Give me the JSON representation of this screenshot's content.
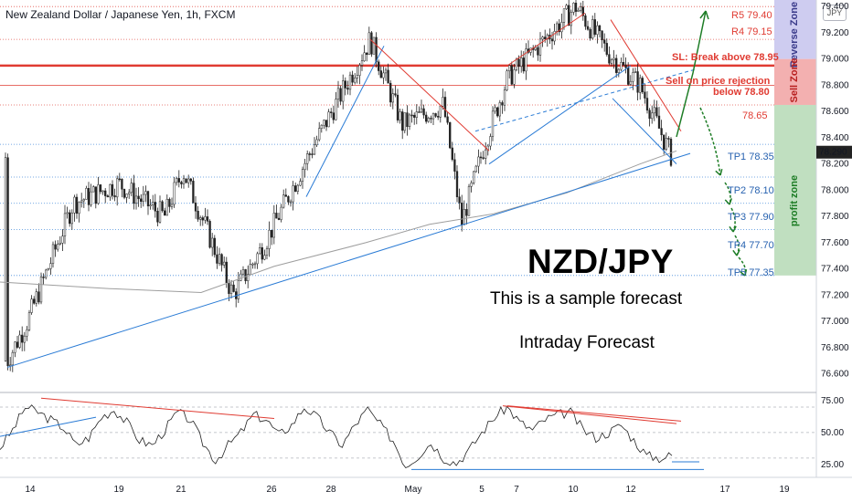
{
  "header": {
    "title": "New Zealand Dollar / Japanese Yen, 1h, FXCM",
    "currency_badge": "JPY"
  },
  "overlay": {
    "pair": "NZD/JPY",
    "subtitle": "This is a sample forecast",
    "caption": "Intraday Forecast"
  },
  "levels": {
    "r5": "R5 79.40",
    "r4": "R4 79.15",
    "sl": "SL: Break above 78.95",
    "sell1": "Sell on price rejection",
    "sell2": "below 78.80",
    "l6865": "78.65",
    "tp1": "TP1 78.35",
    "tp2": "TP2 78.10",
    "tp3": "TP3 77.90",
    "tp4": "TP4 77.70",
    "tp5": "TP5 77.35"
  },
  "zones": {
    "reverse": "Reverse Zone",
    "sell": "Sell Zone",
    "profit": "profit zone"
  },
  "colors": {
    "up": "#26a69a",
    "candle": "#222222",
    "red": "#e03b32",
    "blue": "#2a7bd5",
    "green": "#1e7d26",
    "reverse_zone": "#c9c6ee",
    "sell_zone": "#f2a7a7",
    "profit_zone": "#b9dbb9"
  },
  "chart_data": [
    {
      "type": "candlestick",
      "title": "New Zealand Dollar / Japanese Yen, 1h, FXCM",
      "ylim": [
        76.5,
        79.45
      ],
      "y_ticks": [
        "79.400",
        "79.200",
        "79.000",
        "78.800",
        "78.600",
        "78.400",
        "78.200",
        "78.000",
        "77.800",
        "77.600",
        "77.400",
        "77.200",
        "77.000",
        "76.800",
        "76.600"
      ],
      "x_ticks": [
        "14",
        "19",
        "21",
        "26",
        "28",
        "May",
        "5",
        "7",
        "10",
        "12",
        "17",
        "19"
      ],
      "price_path": [
        [
          "14",
          76.7
        ],
        [
          "14",
          77.0
        ],
        [
          "19",
          77.9
        ],
        [
          "19",
          78.05
        ],
        [
          "21",
          77.8
        ],
        [
          "21",
          78.15
        ],
        [
          "26",
          77.2
        ],
        [
          "26",
          77.6
        ],
        [
          "28",
          78.3
        ],
        [
          "28",
          79.15
        ],
        [
          "May",
          78.5
        ],
        [
          "May",
          78.65
        ],
        [
          "5",
          77.75
        ],
        [
          "5",
          78.35
        ],
        [
          "7",
          78.85
        ],
        [
          "10",
          79.4
        ],
        [
          "10",
          79.05
        ],
        [
          "12",
          78.8
        ],
        [
          "12",
          78.25
        ]
      ],
      "horizontal_levels": [
        {
          "label": "R5 79.40",
          "value": 79.4
        },
        {
          "label": "R4 79.15",
          "value": 79.15
        },
        {
          "label": "SL: Break above 78.95",
          "value": 78.95
        },
        {
          "label": "Sell on price rejection below 78.80",
          "value": 78.8
        },
        {
          "label": "78.65",
          "value": 78.65
        },
        {
          "label": "TP1 78.35",
          "value": 78.35
        },
        {
          "label": "TP2 78.10",
          "value": 78.1
        },
        {
          "label": "TP3 77.90",
          "value": 77.9
        },
        {
          "label": "TP4 77.70",
          "value": 77.7
        },
        {
          "label": "TP5 77.35",
          "value": 77.35
        }
      ],
      "zones": [
        {
          "label": "Reverse Zone",
          "from": 79.0,
          "to": 79.45
        },
        {
          "label": "Sell Zone",
          "from": 78.65,
          "to": 79.0
        },
        {
          "label": "profit zone",
          "from": 77.35,
          "to": 78.65
        }
      ],
      "current_price": 78.29
    },
    {
      "type": "line",
      "title": "",
      "ylim": [
        17,
        80
      ],
      "y_ticks": [
        "75.00",
        "50.00",
        "25.00"
      ],
      "dashed_levels": [
        70,
        50,
        30
      ],
      "series": [
        {
          "values": [
            38,
            52,
            70,
            66,
            60,
            54,
            40,
            46,
            62,
            68,
            58,
            44,
            40,
            52,
            66,
            60,
            42,
            28,
            40,
            50,
            64,
            60,
            48,
            56,
            70,
            62,
            50,
            40,
            56,
            68,
            56,
            44,
            24,
            32,
            42,
            30,
            26,
            36,
            50,
            62,
            70,
            58,
            52,
            60,
            64,
            66,
            52,
            46,
            50,
            56,
            44,
            32,
            30,
            32
          ]
        }
      ]
    }
  ]
}
